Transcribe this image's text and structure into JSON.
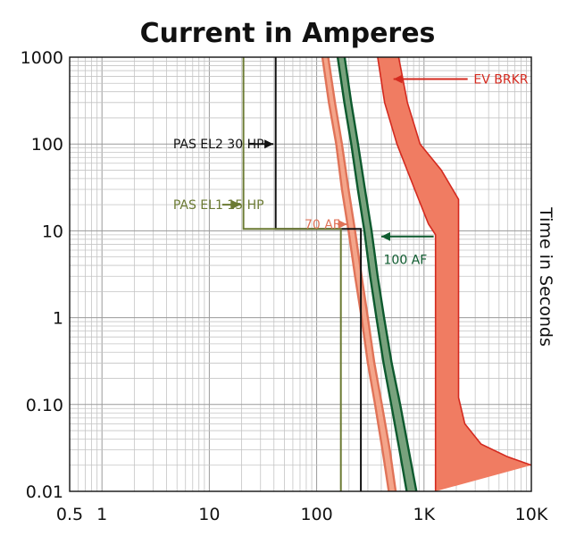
{
  "chart_data": {
    "type": "line",
    "title": "Current in Amperes",
    "xlabel": "",
    "ylabel": "Time in Seconds",
    "xscale": "log",
    "yscale": "log",
    "xlim": [
      0.5,
      10000
    ],
    "ylim": [
      0.01,
      1000
    ],
    "grid": true,
    "x_ticks": [
      {
        "value": 0.5,
        "label": "0.5"
      },
      {
        "value": 1,
        "label": "1"
      },
      {
        "value": 10,
        "label": "10"
      },
      {
        "value": 100,
        "label": "100"
      },
      {
        "value": 1000,
        "label": "1K"
      },
      {
        "value": 10000,
        "label": "10K"
      }
    ],
    "y_ticks": [
      {
        "value": 1000,
        "label": "1000"
      },
      {
        "value": 100,
        "label": "100"
      },
      {
        "value": 10,
        "label": "10"
      },
      {
        "value": 1,
        "label": "1"
      },
      {
        "value": 0.1,
        "label": "0.10"
      },
      {
        "value": 0.01,
        "label": "0.01"
      }
    ],
    "colors": {
      "pas_el2": "#111111",
      "pas_el1": "#6b7a33",
      "af70_fill": "#f4a58a",
      "af70_edge": "#e07358",
      "af100_fill": "#78a27d",
      "af100_edge": "#0d5a2e",
      "ev_fill": "#f07c62",
      "ev_edge": "#d42a1f"
    },
    "series": [
      {
        "key": "pas_el2",
        "name": "PAS EL2 30 HP",
        "kind": "step",
        "points": [
          [
            41.5,
            1000
          ],
          [
            41.5,
            10.5
          ],
          [
            258,
            10.5
          ],
          [
            258,
            0.01
          ]
        ]
      },
      {
        "key": "pas_el1",
        "name": "PAS EL1 15 HP",
        "kind": "step",
        "points": [
          [
            20.8,
            1000
          ],
          [
            20.8,
            10.5
          ],
          [
            168,
            10.5
          ],
          [
            168,
            0.01
          ]
        ]
      },
      {
        "key": "af70",
        "name": "70 AF",
        "kind": "band",
        "left": [
          [
            113,
            1000
          ],
          [
            130,
            300
          ],
          [
            152,
            100
          ],
          [
            172,
            30
          ],
          [
            198,
            10
          ],
          [
            228,
            3
          ],
          [
            262,
            1
          ],
          [
            300,
            0.3
          ],
          [
            350,
            0.1
          ],
          [
            410,
            0.03
          ],
          [
            470,
            0.01
          ]
        ],
        "right": [
          [
            128,
            1000
          ],
          [
            148,
            300
          ],
          [
            172,
            100
          ],
          [
            198,
            30
          ],
          [
            228,
            10
          ],
          [
            262,
            3
          ],
          [
            300,
            1
          ],
          [
            345,
            0.3
          ],
          [
            405,
            0.1
          ],
          [
            480,
            0.03
          ],
          [
            545,
            0.01
          ]
        ]
      },
      {
        "key": "af100",
        "name": "100 AF",
        "kind": "band",
        "left": [
          [
            157,
            1000
          ],
          [
            181,
            300
          ],
          [
            210,
            100
          ],
          [
            242,
            30
          ],
          [
            278,
            10
          ],
          [
            315,
            3
          ],
          [
            360,
            1
          ],
          [
            420,
            0.3
          ],
          [
            495,
            0.1
          ],
          [
            590,
            0.03
          ],
          [
            690,
            0.01
          ]
        ],
        "right": [
          [
            182,
            1000
          ],
          [
            210,
            300
          ],
          [
            243,
            100
          ],
          [
            282,
            30
          ],
          [
            325,
            10
          ],
          [
            370,
            3
          ],
          [
            425,
            1
          ],
          [
            500,
            0.3
          ],
          [
            600,
            0.1
          ],
          [
            720,
            0.03
          ],
          [
            850,
            0.01
          ]
        ]
      },
      {
        "key": "ev_brkr",
        "name": "EV BRKR",
        "kind": "band",
        "left": [
          [
            370,
            1000
          ],
          [
            430,
            300
          ],
          [
            560,
            100
          ],
          [
            820,
            30
          ],
          [
            1100,
            12
          ],
          [
            1280,
            9
          ],
          [
            1280,
            0.01
          ]
        ],
        "right": [
          [
            580,
            1000
          ],
          [
            700,
            300
          ],
          [
            920,
            100
          ],
          [
            1450,
            50
          ],
          [
            2100,
            23
          ],
          [
            2100,
            0.12
          ],
          [
            2400,
            0.06
          ],
          [
            3400,
            0.035
          ],
          [
            6000,
            0.025
          ],
          [
            10000,
            0.02
          ]
        ],
        "top_left": [
          450,
          1000
        ],
        "top_right": [
          580,
          1000
        ]
      }
    ],
    "annotations": [
      {
        "key": "ev_brkr",
        "text": "EV BRKR",
        "color": "#d42a1f",
        "label_at": [
          2900,
          560
        ],
        "arrow_from": [
          2550,
          560
        ],
        "arrow_to": [
          520,
          560
        ],
        "anchor": "start"
      },
      {
        "key": "pas_el2",
        "text": "PAS EL2 30 HP",
        "color": "#111111",
        "label_at": [
          4.6,
          100
        ],
        "arrow_from": [
          23.5,
          100
        ],
        "arrow_to": [
          39.5,
          100
        ],
        "anchor": "start"
      },
      {
        "key": "pas_el1",
        "text": "PAS EL1 15 HP",
        "color": "#6b7a33",
        "label_at": [
          4.6,
          20
        ],
        "arrow_from": [
          13.2,
          20
        ],
        "arrow_to": [
          19.6,
          20
        ],
        "anchor": "start"
      },
      {
        "key": "af70",
        "text": "70 AF",
        "color": "#e07358",
        "label_at": [
          77,
          11.9
        ],
        "arrow_from": [
          157,
          11.9
        ],
        "arrow_to": [
          192,
          11.9
        ],
        "anchor": "start"
      },
      {
        "key": "af100",
        "text": "100 AF",
        "color": "#0d5a2e",
        "label_at": [
          420,
          4.7
        ],
        "arrow_from": [
          1230,
          8.6
        ],
        "arrow_to": [
          400,
          8.6
        ],
        "anchor": "start"
      }
    ]
  }
}
